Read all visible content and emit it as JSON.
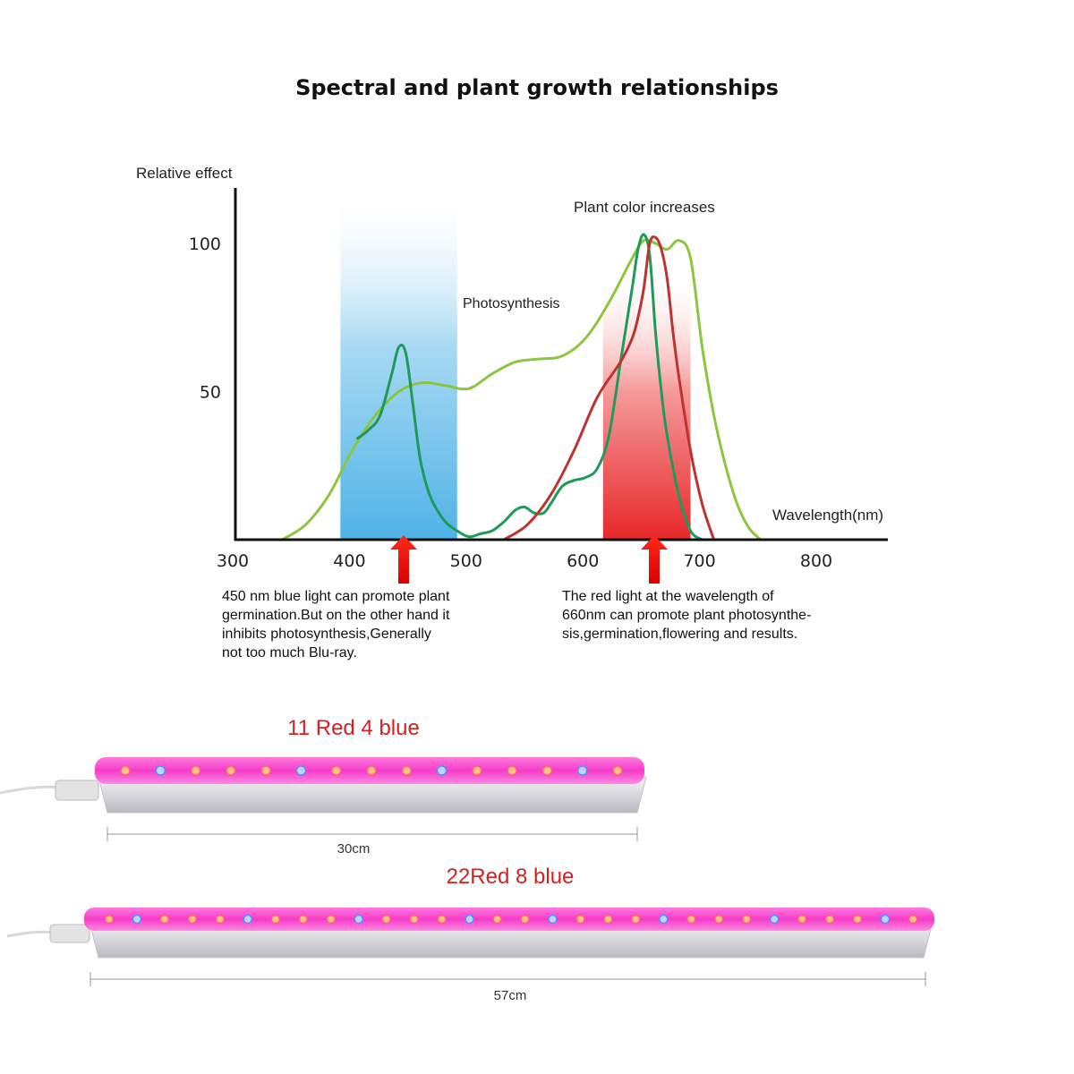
{
  "title": "Spectral and plant growth relationships",
  "chart_data": {
    "type": "line",
    "ylabel": "Relative effect",
    "xlabel": "Wavelength(nm)",
    "x_ticks": [
      300,
      400,
      500,
      600,
      700,
      800
    ],
    "y_ticks": [
      50,
      100
    ],
    "xlim": [
      300,
      850
    ],
    "ylim": [
      0,
      115
    ],
    "bands": [
      {
        "from": 390,
        "to": 490,
        "color": "#4fb3e6"
      },
      {
        "from": 615,
        "to": 690,
        "color": "#e8282a"
      }
    ],
    "annotations": {
      "photosynthesis": "Photosynthesis",
      "plant_color": "Plant color increases"
    },
    "series": [
      {
        "color": "#8cc63f",
        "x": [
          340,
          360,
          380,
          400,
          420,
          440,
          460,
          480,
          500,
          520,
          540,
          560,
          580,
          600,
          620,
          640,
          650,
          660,
          670,
          680,
          690,
          700,
          710,
          720,
          730,
          740,
          750
        ],
        "y": [
          0,
          5,
          15,
          30,
          42,
          50,
          53,
          52,
          51,
          56,
          60,
          61,
          62,
          68,
          80,
          95,
          101,
          100,
          98,
          101,
          95,
          65,
          42,
          25,
          12,
          4,
          0
        ]
      },
      {
        "color": "#1e9a5a",
        "x": [
          404,
          414,
          424,
          434,
          440,
          446,
          452,
          458,
          464,
          470,
          480,
          490,
          500,
          510,
          520,
          530,
          540,
          548,
          556,
          564,
          570,
          580,
          590,
          600,
          610,
          620,
          630,
          640,
          645,
          650,
          655,
          660,
          665,
          670,
          680,
          690,
          700
        ],
        "y": [
          34,
          37,
          42,
          56,
          65,
          63,
          46,
          28,
          18,
          12,
          6,
          3,
          1,
          2,
          3,
          6,
          10,
          11,
          9,
          9,
          12,
          18,
          20,
          21,
          24,
          35,
          60,
          85,
          98,
          103,
          96,
          70,
          50,
          35,
          15,
          3,
          0
        ]
      },
      {
        "color": "#c0322f",
        "x": [
          530,
          550,
          570,
          590,
          610,
          630,
          640,
          645,
          650,
          655,
          660,
          665,
          670,
          675,
          680,
          690,
          700,
          710
        ],
        "y": [
          0,
          5,
          15,
          30,
          48,
          60,
          68,
          75,
          85,
          100,
          102,
          98,
          88,
          70,
          55,
          30,
          12,
          0
        ]
      }
    ]
  },
  "notes": {
    "blue": "450 nm blue light can promote plant\ngermination.But on the other hand it\ninhibits photosynthesis,Generally\nnot too much Blu-ray.",
    "red": "The red light at the wavelength of\n660nm can promote plant photosynthe-\nsis,germination,flowering and results."
  },
  "products": {
    "short": {
      "label": "11 Red 4 blue",
      "size": "30cm",
      "red_leds": 11,
      "blue_leds": 4
    },
    "long": {
      "label": "22Red 8 blue",
      "size": "57cm",
      "red_leds": 22,
      "blue_leds": 8
    }
  }
}
